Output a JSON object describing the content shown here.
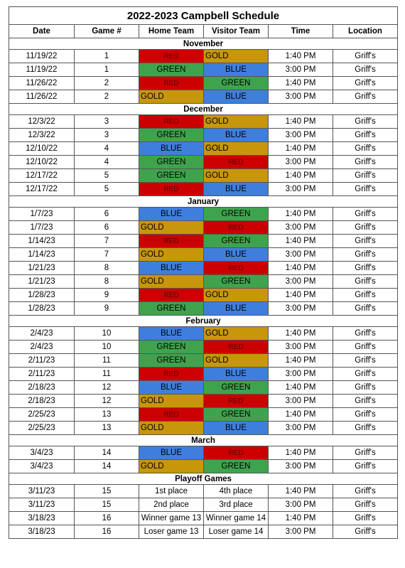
{
  "title": "2022-2023 Campbell Schedule",
  "headers": [
    "Date",
    "Game #",
    "Home Team",
    "Visitor Team",
    "Time",
    "Location"
  ],
  "team_colors": {
    "RED": "#cc0000",
    "GOLD": "#c8960a",
    "GREEN": "#3fa34d",
    "BLUE": "#3f7fdc"
  },
  "sections": [
    {
      "name": "November",
      "games": [
        {
          "date": "11/19/22",
          "game": "1",
          "home": "RED",
          "visitor": "GOLD",
          "time": "1:40 PM",
          "location": "Griff's"
        },
        {
          "date": "11/19/22",
          "game": "1",
          "home": "GREEN",
          "visitor": "BLUE",
          "time": "3:00 PM",
          "location": "Griff's"
        },
        {
          "date": "11/26/22",
          "game": "2",
          "home": "RED",
          "visitor": "GREEN",
          "time": "1:40 PM",
          "location": "Griff's"
        },
        {
          "date": "11/26/22",
          "game": "2",
          "home": "GOLD",
          "visitor": "BLUE",
          "time": "3:00 PM",
          "location": "Griff's"
        }
      ]
    },
    {
      "name": "December",
      "games": [
        {
          "date": "12/3/22",
          "game": "3",
          "home": "RED",
          "visitor": "GOLD",
          "time": "1:40 PM",
          "location": "Griff's"
        },
        {
          "date": "12/3/22",
          "game": "3",
          "home": "GREEN",
          "visitor": "BLUE",
          "time": "3:00 PM",
          "location": "Griff's"
        },
        {
          "date": "12/10/22",
          "game": "4",
          "home": "BLUE",
          "visitor": "GOLD",
          "time": "1:40 PM",
          "location": "Griff's"
        },
        {
          "date": "12/10/22",
          "game": "4",
          "home": "GREEN",
          "visitor": "RED",
          "time": "3:00 PM",
          "location": "Griff's"
        },
        {
          "date": "12/17/22",
          "game": "5",
          "home": "GREEN",
          "visitor": "GOLD",
          "time": "1:40 PM",
          "location": "Griff's"
        },
        {
          "date": "12/17/22",
          "game": "5",
          "home": "RED",
          "visitor": "BLUE",
          "time": "3:00 PM",
          "location": "Griff's"
        }
      ]
    },
    {
      "name": "January",
      "games": [
        {
          "date": "1/7/23",
          "game": "6",
          "home": "BLUE",
          "visitor": "GREEN",
          "time": "1:40 PM",
          "location": "Griff's"
        },
        {
          "date": "1/7/23",
          "game": "6",
          "home": "GOLD",
          "visitor": "RED",
          "time": "3:00 PM",
          "location": "Griff's"
        },
        {
          "date": "1/14/23",
          "game": "7",
          "home": "RED",
          "visitor": "GREEN",
          "time": "1:40 PM",
          "location": "Griff's"
        },
        {
          "date": "1/14/23",
          "game": "7",
          "home": "GOLD",
          "visitor": "BLUE",
          "time": "3:00 PM",
          "location": "Griff's"
        },
        {
          "date": "1/21/23",
          "game": "8",
          "home": "BLUE",
          "visitor": "RED",
          "time": "1:40 PM",
          "location": "Griff's"
        },
        {
          "date": "1/21/23",
          "game": "8",
          "home": "GOLD",
          "visitor": "GREEN",
          "time": "3:00 PM",
          "location": "Griff's"
        },
        {
          "date": "1/28/23",
          "game": "9",
          "home": "RED",
          "visitor": "GOLD",
          "time": "1:40 PM",
          "location": "Griff's"
        },
        {
          "date": "1/28/23",
          "game": "9",
          "home": "GREEN",
          "visitor": "BLUE",
          "time": "3:00 PM",
          "location": "Griff's"
        }
      ]
    },
    {
      "name": "February",
      "games": [
        {
          "date": "2/4/23",
          "game": "10",
          "home": "BLUE",
          "visitor": "GOLD",
          "time": "1:40 PM",
          "location": "Griff's"
        },
        {
          "date": "2/4/23",
          "game": "10",
          "home": "GREEN",
          "visitor": "RED",
          "time": "3:00 PM",
          "location": "Griff's"
        },
        {
          "date": "2/11/23",
          "game": "11",
          "home": "GREEN",
          "visitor": "GOLD",
          "time": "1:40 PM",
          "location": "Griff's"
        },
        {
          "date": "2/11/23",
          "game": "11",
          "home": "RED",
          "visitor": "BLUE",
          "time": "3:00 PM",
          "location": "Griff's"
        },
        {
          "date": "2/18/23",
          "game": "12",
          "home": "BLUE",
          "visitor": "GREEN",
          "time": "1:40 PM",
          "location": "Griff's"
        },
        {
          "date": "2/18/23",
          "game": "12",
          "home": "GOLD",
          "visitor": "RED",
          "time": "3:00 PM",
          "location": "Griff's"
        },
        {
          "date": "2/25/23",
          "game": "13",
          "home": "RED",
          "visitor": "GREEN",
          "time": "1:40 PM",
          "location": "Griff's"
        },
        {
          "date": "2/25/23",
          "game": "13",
          "home": "GOLD",
          "visitor": "BLUE",
          "time": "3:00 PM",
          "location": "Griff's"
        }
      ]
    },
    {
      "name": "March",
      "games": [
        {
          "date": "3/4/23",
          "game": "14",
          "home": "BLUE",
          "visitor": "RED",
          "time": "1:40 PM",
          "location": "Griff's"
        },
        {
          "date": "3/4/23",
          "game": "14",
          "home": "GOLD",
          "visitor": "GREEN",
          "time": "3:00 PM",
          "location": "Griff's"
        }
      ]
    },
    {
      "name": "Playoff Games",
      "games": [
        {
          "date": "3/11/23",
          "game": "15",
          "home": "1st place",
          "visitor": "4th place",
          "time": "1:40 PM",
          "location": "Griff's"
        },
        {
          "date": "3/11/23",
          "game": "15",
          "home": "2nd place",
          "visitor": "3rd place",
          "time": "3:00 PM",
          "location": "Griff's"
        },
        {
          "date": "3/18/23",
          "game": "16",
          "home": "Winner game 13",
          "visitor": "Winner game 14",
          "time": "1:40 PM",
          "location": "Griff's"
        },
        {
          "date": "3/18/23",
          "game": "16",
          "home": "Loser game 13",
          "visitor": "Loser game 14",
          "time": "3:00 PM",
          "location": "Griff's"
        }
      ]
    }
  ]
}
